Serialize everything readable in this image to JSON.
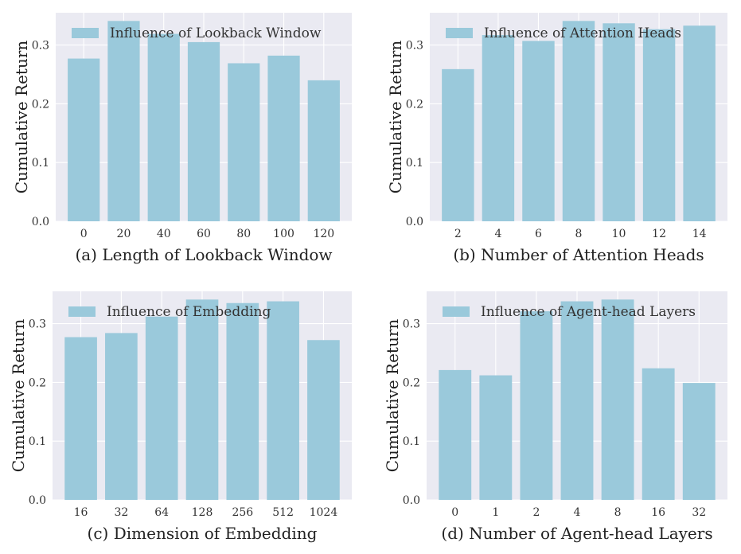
{
  "colors": {
    "bar": "#9ac9db",
    "axes_bg": "#eaeaf2",
    "grid": "#ffffff"
  },
  "chart_data": [
    {
      "type": "bar",
      "categories": [
        "0",
        "20",
        "40",
        "60",
        "80",
        "100",
        "120"
      ],
      "values": [
        0.277,
        0.341,
        0.319,
        0.305,
        0.269,
        0.282,
        0.24
      ],
      "series": [
        {
          "name": "Influence of Lookback Window",
          "values": [
            0.277,
            0.341,
            0.319,
            0.305,
            0.269,
            0.282,
            0.24
          ]
        }
      ],
      "xlabel": "(a) Length of Lookback Window",
      "ylabel": "Cumulative Return",
      "ylim": [
        0,
        0.355
      ],
      "yticks": [
        "0.0",
        "0.1",
        "0.2",
        "0.3"
      ],
      "grid": true,
      "legend": "upper-left"
    },
    {
      "type": "bar",
      "categories": [
        "2",
        "4",
        "6",
        "8",
        "10",
        "12",
        "14"
      ],
      "values": [
        0.259,
        0.317,
        0.307,
        0.341,
        0.337,
        0.327,
        0.333
      ],
      "series": [
        {
          "name": "Influence of Attention Heads",
          "values": [
            0.259,
            0.317,
            0.307,
            0.341,
            0.337,
            0.327,
            0.333
          ]
        }
      ],
      "xlabel": "(b) Number of Attention Heads",
      "ylabel": "Cumulative Return",
      "ylim": [
        0,
        0.355
      ],
      "yticks": [
        "0.0",
        "0.1",
        "0.2",
        "0.3"
      ],
      "grid": true,
      "legend": "upper-left"
    },
    {
      "type": "bar",
      "categories": [
        "16",
        "32",
        "64",
        "128",
        "256",
        "512",
        "1024"
      ],
      "values": [
        0.277,
        0.284,
        0.312,
        0.341,
        0.335,
        0.338,
        0.272
      ],
      "series": [
        {
          "name": "Influence of Embedding",
          "values": [
            0.277,
            0.284,
            0.312,
            0.341,
            0.335,
            0.338,
            0.272
          ]
        }
      ],
      "xlabel": "(c) Dimension of Embedding",
      "ylabel": "Cumulative Return",
      "ylim": [
        0,
        0.355
      ],
      "yticks": [
        "0.0",
        "0.1",
        "0.2",
        "0.3"
      ],
      "grid": true,
      "legend": "upper-left"
    },
    {
      "type": "bar",
      "categories": [
        "0",
        "1",
        "2",
        "4",
        "8",
        "16",
        "32"
      ],
      "values": [
        0.221,
        0.212,
        0.321,
        0.338,
        0.341,
        0.224,
        0.199
      ],
      "series": [
        {
          "name": "Influence of Agent-head Layers",
          "values": [
            0.221,
            0.212,
            0.321,
            0.338,
            0.341,
            0.224,
            0.199
          ]
        }
      ],
      "xlabel": "(d) Number of Agent-head Layers",
      "ylabel": "Cumulative Return",
      "ylim": [
        0,
        0.355
      ],
      "yticks": [
        "0.0",
        "0.1",
        "0.2",
        "0.3"
      ],
      "grid": true,
      "legend": "upper-left"
    }
  ]
}
